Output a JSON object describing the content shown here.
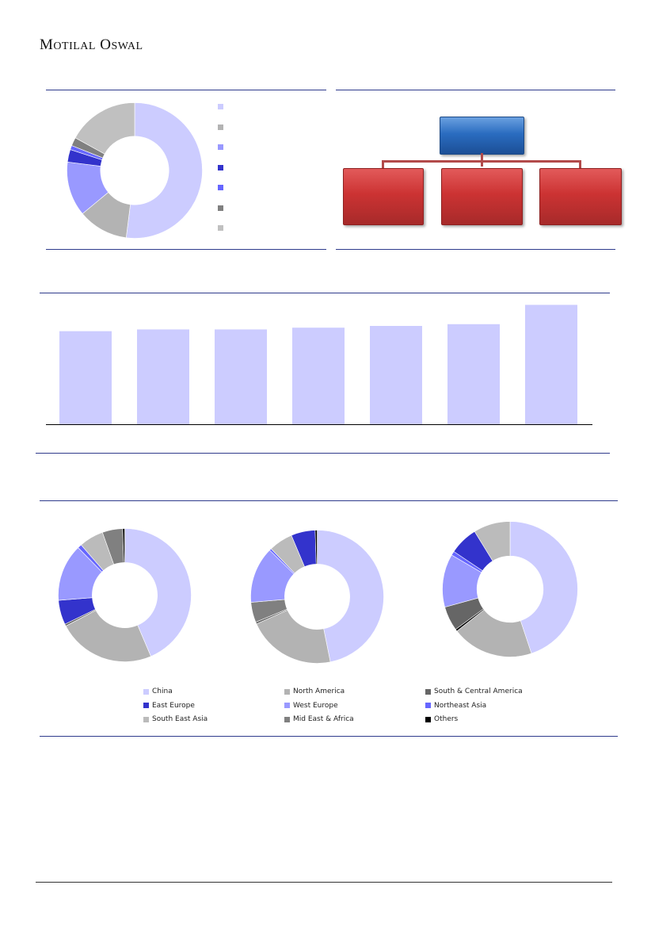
{
  "header": {
    "brand_part1_cap": "M",
    "brand_part1_rest": "OTILAL",
    "brand_part2_cap": "O",
    "brand_part2_rest": "SWAL"
  },
  "colors": {
    "rule": "#2f3b8c",
    "china": "#ccccff",
    "north_america": "#b3b3b3",
    "south_central_america": "#666666",
    "east_europe": "#3333cc",
    "west_europe": "#9999ff",
    "northeast_asia": "#6666ff",
    "south_east_asia": "#bbbbbb",
    "mid_east_africa": "#808080",
    "others": "#000000"
  },
  "chart_data": [
    {
      "type": "pie",
      "variant": "donut",
      "labels": [
        "",
        "",
        "",
        "",
        "",
        "",
        ""
      ],
      "values": [
        52,
        12,
        13,
        3,
        1,
        2,
        17
      ],
      "colors": [
        "#ccccff",
        "#b3b3b3",
        "#9999ff",
        "#3333cc",
        "#6666ff",
        "#808080",
        "#c0c0c0"
      ],
      "legend": "right"
    },
    {
      "type": "bar",
      "categories": [
        "",
        "",
        "",
        "",
        "",
        "",
        ""
      ],
      "values": [
        106,
        108,
        108,
        110,
        112,
        114,
        136
      ],
      "ylim": [
        0,
        140
      ],
      "color": "#ccccff",
      "grid": false
    },
    {
      "type": "pie",
      "variant": "donut",
      "labels": [
        "China",
        "North America",
        "South & Central America",
        "East Europe",
        "West Europe",
        "Northeast Asia",
        "South East Asia",
        "Mid East & Africa",
        "Others"
      ],
      "values": [
        44,
        24,
        0.5,
        6,
        14,
        1,
        6,
        5,
        0.5
      ],
      "legend": "bottom"
    },
    {
      "type": "pie",
      "variant": "donut",
      "labels": [
        "China",
        "North America",
        "South & Central America",
        "Mid East & Africa",
        "West Europe",
        "Northeast Asia",
        "South East Asia",
        "East Europe",
        "Others"
      ],
      "values": [
        48,
        22,
        0.5,
        5,
        14,
        0.5,
        6,
        6,
        0.5
      ],
      "legend": "bottom"
    },
    {
      "type": "pie",
      "variant": "donut",
      "labels": [
        "China",
        "North America",
        "Others",
        "South & Central America",
        "West Europe",
        "Northeast Asia",
        "East Europe",
        "South East Asia"
      ],
      "values": [
        46,
        20,
        0.5,
        6,
        13,
        1,
        7,
        9
      ],
      "legend": "bottom"
    }
  ],
  "legend": {
    "items": [
      {
        "label": "China",
        "color": "#ccccff"
      },
      {
        "label": "North America",
        "color": "#b3b3b3"
      },
      {
        "label": "South & Central America",
        "color": "#666666"
      },
      {
        "label": "East Europe",
        "color": "#3333cc"
      },
      {
        "label": "West Europe",
        "color": "#9999ff"
      },
      {
        "label": "Northeast Asia",
        "color": "#6666ff"
      },
      {
        "label": "South East Asia",
        "color": "#bbbbbb"
      },
      {
        "label": "Mid East & Africa",
        "color": "#808080"
      },
      {
        "label": "Others",
        "color": "#000000"
      }
    ]
  },
  "org_chart": {
    "top_label": "",
    "children": [
      "",
      "",
      ""
    ]
  }
}
